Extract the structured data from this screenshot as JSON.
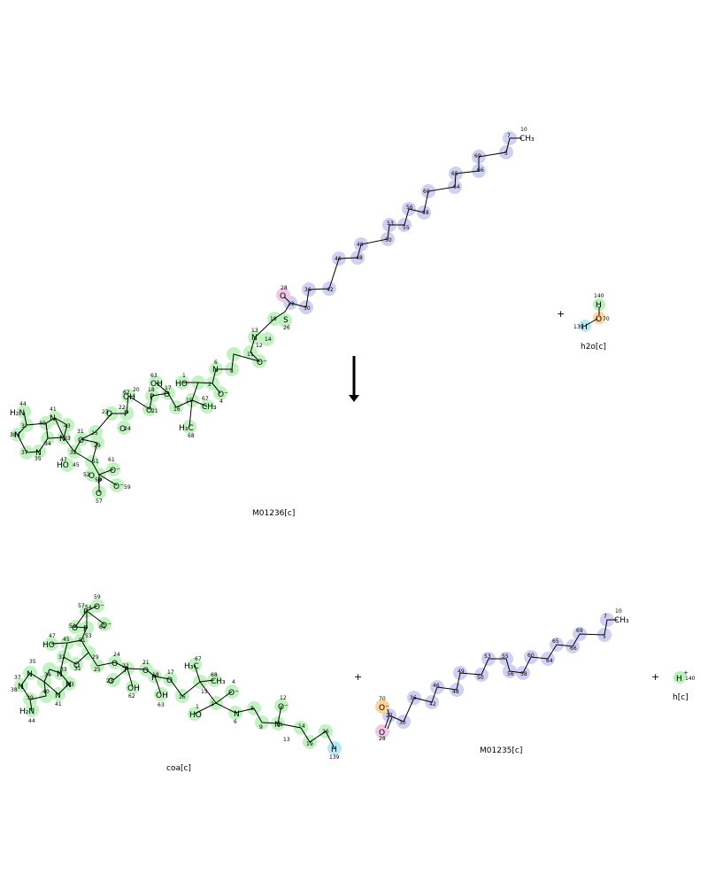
{
  "reactants": {
    "m01236": {
      "label": "M01236[c]"
    },
    "h2o": {
      "label": "h2o[c]"
    }
  },
  "products": {
    "coa": {
      "label": "coa[c]"
    },
    "m01235": {
      "label": "M01235[c]"
    },
    "h": {
      "label": "h[c]"
    }
  },
  "operators": {
    "plus": "+"
  },
  "colors": {
    "bond": "#000000",
    "oxygen": "#e60000",
    "nitrogen": "#0000cc",
    "sulfur": "#b3b300",
    "phosphorus": "#cc6600",
    "hl_blue": "#c8c8f0",
    "hl_green": "#b8f0b8",
    "hl_pink": "#f0c8e6",
    "hl_orange": "#ffd49a",
    "hl_cyan": "#b8e8f0"
  }
}
